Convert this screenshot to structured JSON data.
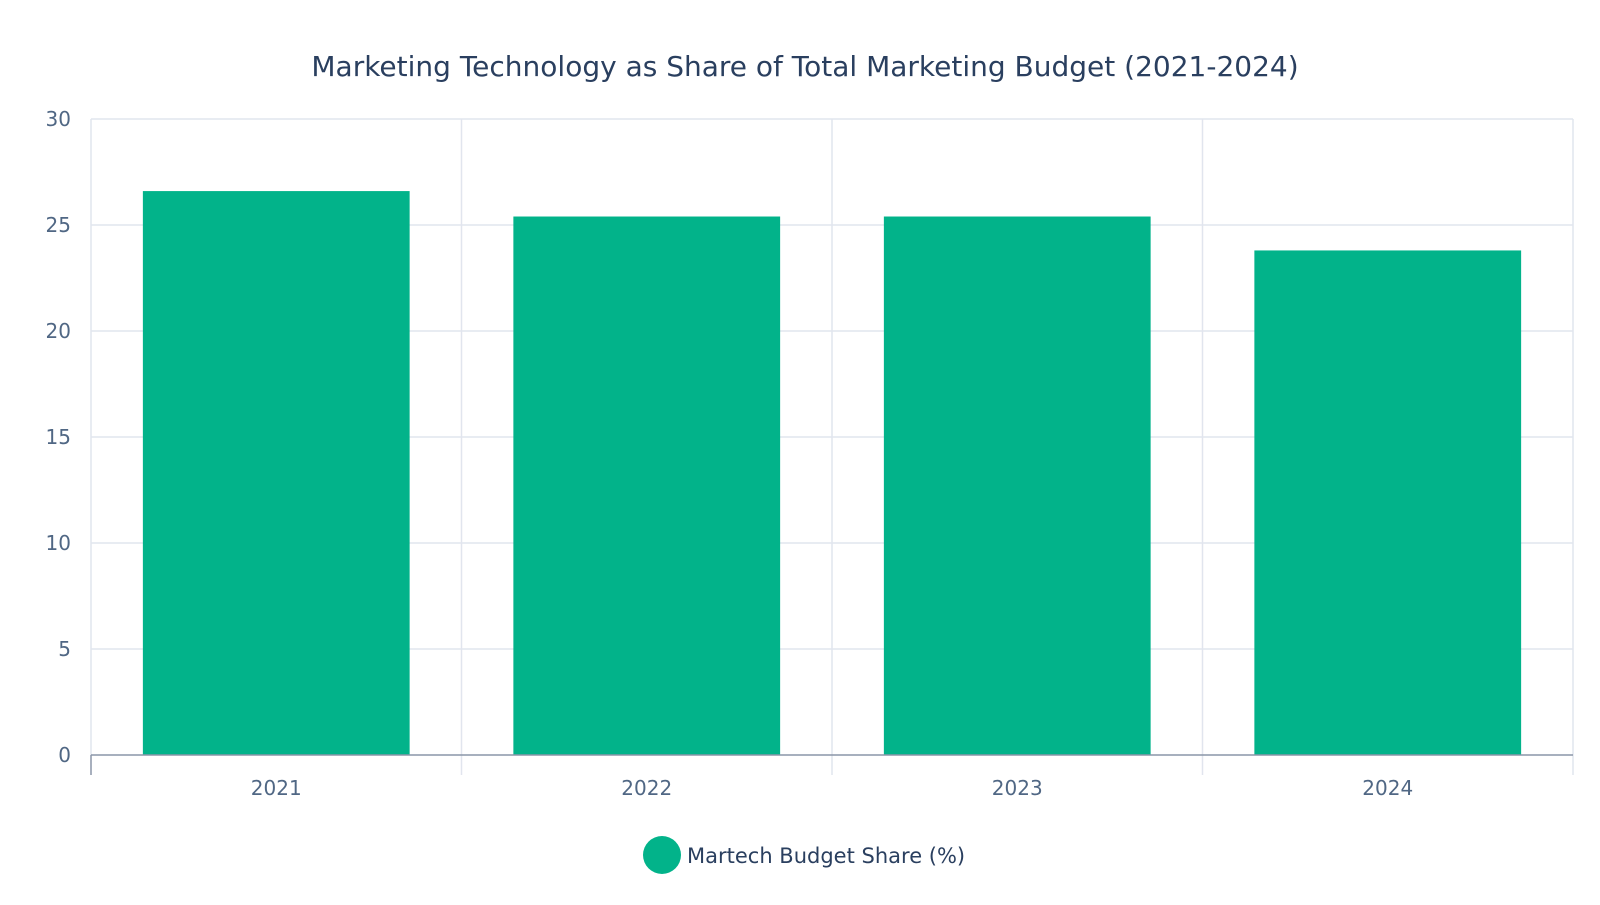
{
  "chart_data": {
    "type": "bar",
    "title": "Marketing Technology as Share of Total Marketing Budget (2021-2024)",
    "xlabel": "",
    "ylabel": "",
    "categories": [
      "2021",
      "2022",
      "2023",
      "2024"
    ],
    "series": [
      {
        "name": "Martech Budget Share (%)",
        "values": [
          26.6,
          25.4,
          25.4,
          23.8
        ],
        "color": "#02b38a"
      }
    ],
    "ylim": [
      0,
      30
    ],
    "yticks": [
      0,
      5,
      10,
      15,
      20,
      25,
      30
    ],
    "grid": true,
    "legend_position": "bottom"
  }
}
